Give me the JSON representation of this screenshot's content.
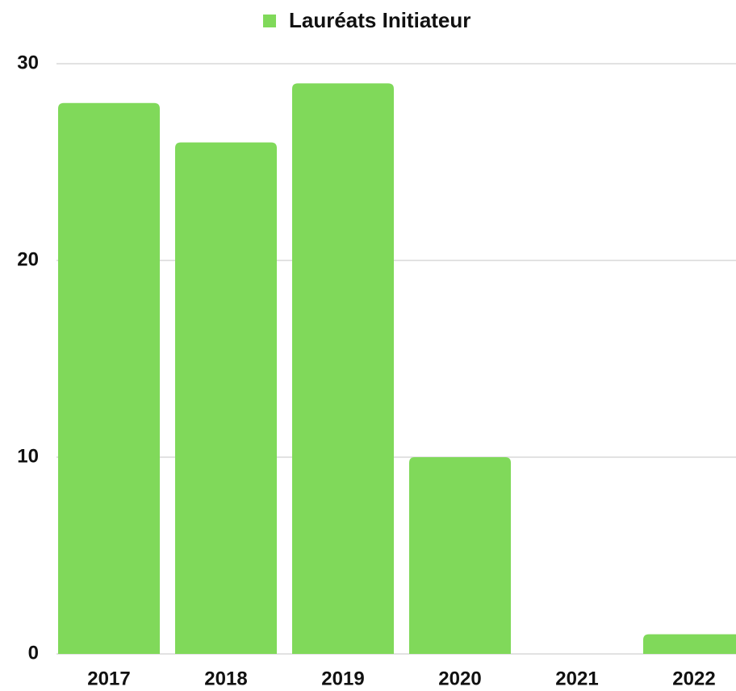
{
  "chart_data": {
    "type": "bar",
    "categories": [
      "2017",
      "2018",
      "2019",
      "2020",
      "2021",
      "2022"
    ],
    "series": [
      {
        "name": "Lauréats Initiateur",
        "color": "#80d95a",
        "values": [
          28,
          26,
          29,
          10,
          0,
          1
        ]
      }
    ],
    "ylim": [
      0,
      30
    ],
    "yticks": [
      0,
      10,
      20,
      30
    ],
    "grid": true,
    "legend": "top"
  }
}
